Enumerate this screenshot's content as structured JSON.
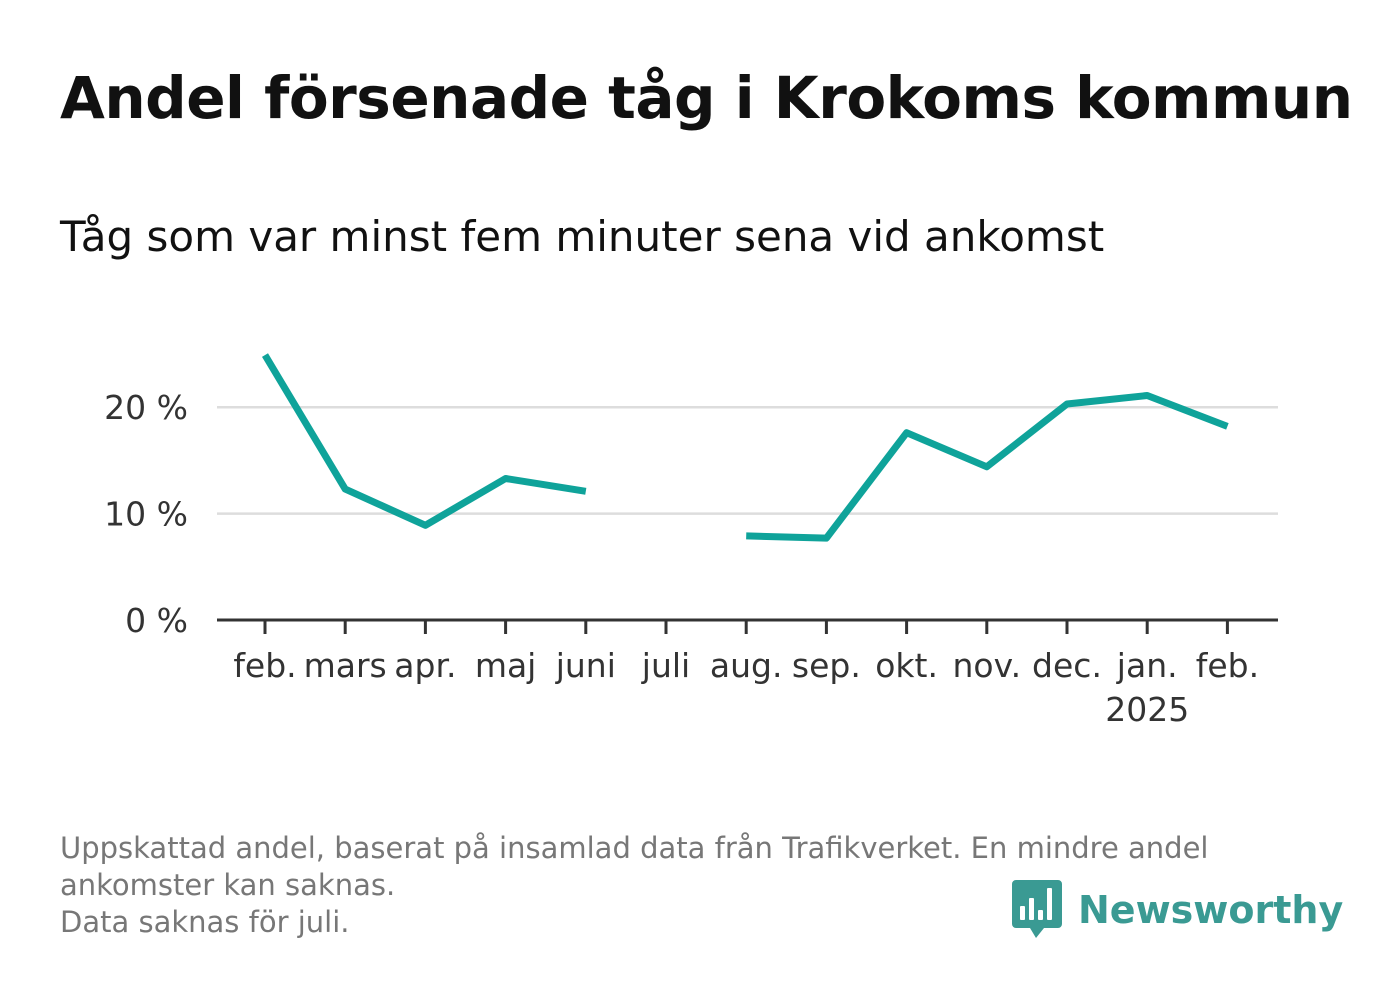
{
  "header": {
    "title": "Andel försenade tåg i Krokoms kommun",
    "subtitle": "Tåg som var minst fem minuter sena vid ankomst"
  },
  "footer": {
    "note_line1": "Uppskattad andel, baserat på insamlad data från Trafikverket. En mindre andel",
    "note_line2": "ankomster kan saknas.",
    "note_line3": "Data saknas för juli.",
    "brand_name": "Newsworthy",
    "brand_icon": "bar-chart-speech-bubble-icon"
  },
  "colors": {
    "line": "#0fa39a",
    "grid": "#dddddd",
    "axis": "#333333",
    "brand": "#3a9a93"
  },
  "chart_data": {
    "type": "line",
    "title": "Andel försenade tåg i Krokoms kommun",
    "subtitle": "Tåg som var minst fem minuter sena vid ankomst",
    "xlabel": "",
    "ylabel": "",
    "categories": [
      "feb.",
      "mars",
      "apr.",
      "maj",
      "juni",
      "juli",
      "aug.",
      "sep.",
      "okt.",
      "nov.",
      "dec.",
      "jan.",
      "feb."
    ],
    "year_labels": [
      {
        "index": 11,
        "label": "2025"
      }
    ],
    "series": [
      {
        "values": [
          24.9,
          12.3,
          8.9,
          13.3,
          12.1,
          null,
          7.9,
          7.7,
          17.6,
          14.4,
          20.3,
          21.1,
          18.2
        ]
      }
    ],
    "y_ticks": [
      {
        "value": 0,
        "label": "0 %"
      },
      {
        "value": 10,
        "label": "10 %"
      },
      {
        "value": 20,
        "label": "20 %"
      }
    ],
    "ylim": [
      0,
      25
    ],
    "grid": true,
    "legend": "none"
  }
}
